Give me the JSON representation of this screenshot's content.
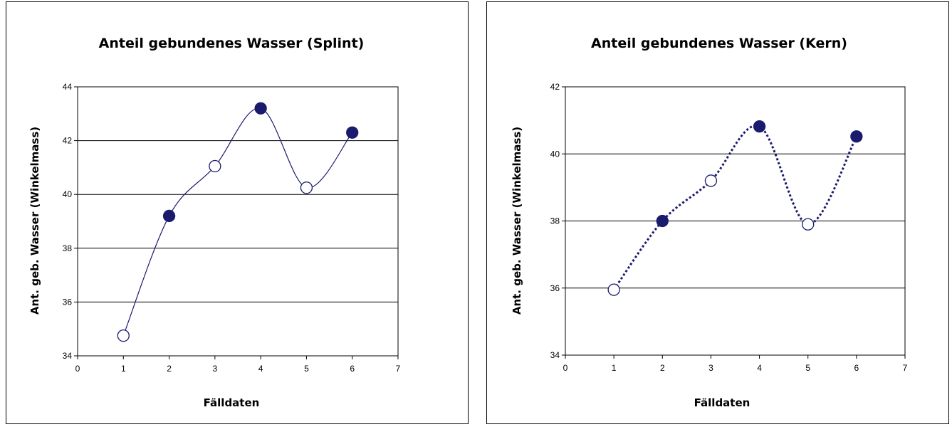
{
  "chart_data": [
    {
      "type": "line",
      "title": "Anteil gebundenes Wasser (Splint)",
      "xlabel": "Fälldaten",
      "ylabel": "Ant. geb. Wasser (Winkelmass)",
      "xlim": [
        0,
        7
      ],
      "ylim": [
        34,
        44
      ],
      "x_ticks": [
        "0",
        "1",
        "2",
        "3",
        "4",
        "5",
        "6",
        "7"
      ],
      "y_ticks": [
        "34",
        "36",
        "38",
        "40",
        "42",
        "44"
      ],
      "grid": "horizontal",
      "line_style": "solid",
      "line_color": "#1b1b6e",
      "points": [
        {
          "x": 1,
          "y": 34.75,
          "marker": "open"
        },
        {
          "x": 2,
          "y": 39.2,
          "marker": "filled"
        },
        {
          "x": 3,
          "y": 41.05,
          "marker": "open"
        },
        {
          "x": 4,
          "y": 43.2,
          "marker": "filled"
        },
        {
          "x": 5,
          "y": 40.25,
          "marker": "open"
        },
        {
          "x": 6,
          "y": 42.3,
          "marker": "filled"
        }
      ]
    },
    {
      "type": "line",
      "title": "Anteil gebundenes Wasser (Kern)",
      "xlabel": "Fälldaten",
      "ylabel": "Ant. geb. Wasser (Winkelmass)",
      "xlim": [
        0,
        7
      ],
      "ylim": [
        34,
        42
      ],
      "x_ticks": [
        "0",
        "1",
        "2",
        "3",
        "4",
        "5",
        "6",
        "7"
      ],
      "y_ticks": [
        "34",
        "36",
        "38",
        "40",
        "42"
      ],
      "grid": "horizontal",
      "line_style": "dotted",
      "line_color": "#1b1b6e",
      "points": [
        {
          "x": 1,
          "y": 35.95,
          "marker": "open"
        },
        {
          "x": 2,
          "y": 38.0,
          "marker": "filled"
        },
        {
          "x": 3,
          "y": 39.2,
          "marker": "open"
        },
        {
          "x": 4,
          "y": 40.82,
          "marker": "filled"
        },
        {
          "x": 5,
          "y": 37.9,
          "marker": "open"
        },
        {
          "x": 6,
          "y": 40.52,
          "marker": "filled"
        }
      ]
    }
  ]
}
